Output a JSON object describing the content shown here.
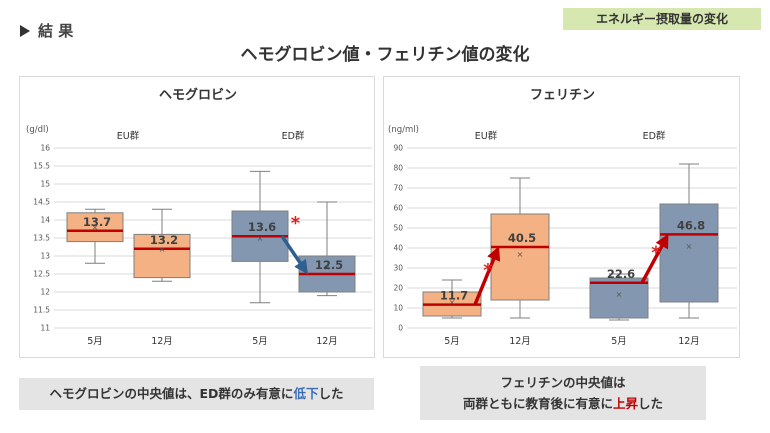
{
  "header": {
    "section_label": "結 果",
    "tag": "エネルギー摂取量の変化",
    "title": "ヘモグロビン値・フェリチン値の変化"
  },
  "chart_data": [
    {
      "type": "box",
      "title": "ヘモグロビン",
      "ylabel": "(g/dl)",
      "ylim": [
        11,
        16
      ],
      "yticks": [
        11,
        11.5,
        12,
        12.5,
        13,
        13.5,
        14,
        14.5,
        15,
        15.5,
        16
      ],
      "groups": [
        "EU群",
        "ED群"
      ],
      "boxes": [
        {
          "group": "EU群",
          "label": "5月",
          "whisker_low": 12.8,
          "q1": 13.4,
          "median": 13.7,
          "q3": 14.2,
          "whisker_high": 14.3,
          "mean": 13.8,
          "median_label": "13.7",
          "color": "#f4b183"
        },
        {
          "group": "EU群",
          "label": "12月",
          "whisker_low": 12.3,
          "q1": 12.4,
          "median": 13.2,
          "q3": 13.6,
          "whisker_high": 14.3,
          "mean": 13.2,
          "median_label": "13.2",
          "color": "#f4b183"
        },
        {
          "group": "ED群",
          "label": "5月",
          "whisker_low": 11.7,
          "q1": 12.85,
          "median": 13.55,
          "q3": 14.25,
          "whisker_high": 15.35,
          "mean": 13.5,
          "median_label": "13.6",
          "color": "#8497b0"
        },
        {
          "group": "ED群",
          "label": "12月",
          "whisker_low": 11.9,
          "q1": 12.0,
          "median": 12.5,
          "q3": 13.0,
          "whisker_high": 14.5,
          "mean": 12.7,
          "median_label": "12.5",
          "color": "#8497b0"
        }
      ],
      "arrow": {
        "from": 2,
        "to": 3,
        "color": "#2e5f8f"
      },
      "significance": [
        {
          "box": 2,
          "mark": "*"
        }
      ]
    },
    {
      "type": "box",
      "title": "フェリチン",
      "ylabel": "(ng/ml)",
      "ylim": [
        0,
        90
      ],
      "yticks": [
        0,
        10,
        20,
        30,
        40,
        50,
        60,
        70,
        80,
        90
      ],
      "groups": [
        "EU群",
        "ED群"
      ],
      "boxes": [
        {
          "group": "EU群",
          "label": "5月",
          "whisker_low": 5,
          "q1": 6,
          "median": 11.7,
          "q3": 18,
          "whisker_high": 24,
          "mean": 13,
          "median_label": "11.7",
          "color": "#f4b183"
        },
        {
          "group": "EU群",
          "label": "12月",
          "whisker_low": 5,
          "q1": 14,
          "median": 40.5,
          "q3": 57,
          "whisker_high": 75,
          "mean": 37,
          "median_label": "40.5",
          "color": "#f4b183"
        },
        {
          "group": "ED群",
          "label": "5月",
          "whisker_low": 4,
          "q1": 5,
          "median": 22.6,
          "q3": 25,
          "whisker_high": 27,
          "mean": 17,
          "median_label": "22.6",
          "color": "#8497b0"
        },
        {
          "group": "ED群",
          "label": "12月",
          "whisker_low": 5,
          "q1": 13,
          "median": 46.8,
          "q3": 62,
          "whisker_high": 82,
          "mean": 41,
          "median_label": "46.8",
          "color": "#8497b0"
        }
      ],
      "arrows": [
        {
          "from": 0,
          "to": 1,
          "color": "#c00000"
        },
        {
          "from": 2,
          "to": 3,
          "color": "#c00000"
        }
      ],
      "significance": [
        {
          "box": 0,
          "mark": "*"
        },
        {
          "box": 2,
          "mark": "*"
        }
      ]
    }
  ],
  "notes": {
    "left": {
      "pre": "ヘモグロビンの中央値は、ED群のみ有意に",
      "emph": "低下",
      "post": "した"
    },
    "right": {
      "line1": "フェリチンの中央値は",
      "pre": "両群ともに教育後に有意に",
      "emph": "上昇",
      "post": "した"
    }
  }
}
